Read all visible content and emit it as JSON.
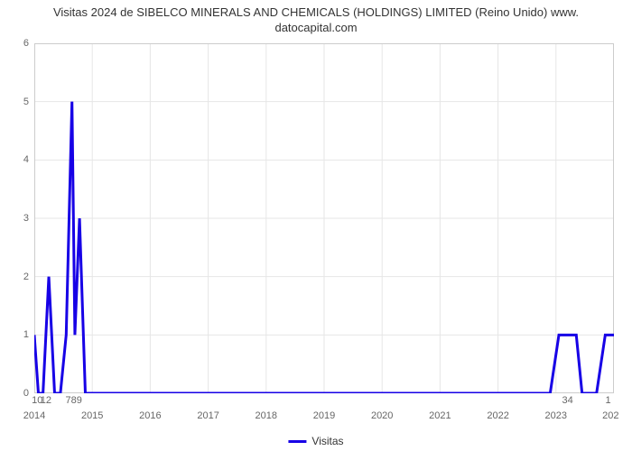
{
  "chart": {
    "type": "line",
    "title_line1": "Visitas 2024 de SIBELCO MINERALS AND CHEMICALS (HOLDINGS) LIMITED (Reino Unido) www.",
    "title_line2": "datocapital.com",
    "title_fontsize": 13,
    "title_color": "#333333",
    "background_color": "#ffffff",
    "plot_border_color": "#cccccc",
    "grid_color": "#e6e6e6",
    "x_domain": [
      2014,
      2024
    ],
    "y_axis": {
      "min": 0,
      "max": 6,
      "ticks": [
        0,
        1,
        2,
        3,
        4,
        5,
        6
      ],
      "tick_fontsize": 11,
      "tick_color": "#666666"
    },
    "x_axis_years": {
      "ticks": [
        2014,
        2015,
        2016,
        2017,
        2018,
        2019,
        2020,
        2021,
        2022,
        2023
      ],
      "end_label": "202",
      "tick_fontsize": 11,
      "tick_color": "#666666"
    },
    "x_point_labels": [
      {
        "x": 2014.05,
        "label": "10"
      },
      {
        "x": 2014.2,
        "label": "12"
      },
      {
        "x": 2014.68,
        "label": "789"
      },
      {
        "x": 2023.2,
        "label": "34"
      },
      {
        "x": 2023.9,
        "label": "1"
      }
    ],
    "series": {
      "name": "Visitas",
      "color": "#1700e6",
      "stroke_width": 3,
      "points": [
        {
          "x": 2014.0,
          "y": 1
        },
        {
          "x": 2014.07,
          "y": 0
        },
        {
          "x": 2014.15,
          "y": 0
        },
        {
          "x": 2014.25,
          "y": 2
        },
        {
          "x": 2014.35,
          "y": 0
        },
        {
          "x": 2014.45,
          "y": 0
        },
        {
          "x": 2014.55,
          "y": 1
        },
        {
          "x": 2014.65,
          "y": 5
        },
        {
          "x": 2014.7,
          "y": 1
        },
        {
          "x": 2014.78,
          "y": 3
        },
        {
          "x": 2014.88,
          "y": 0
        },
        {
          "x": 2015.0,
          "y": 0
        },
        {
          "x": 2016.0,
          "y": 0
        },
        {
          "x": 2017.0,
          "y": 0
        },
        {
          "x": 2018.0,
          "y": 0
        },
        {
          "x": 2019.0,
          "y": 0
        },
        {
          "x": 2020.0,
          "y": 0
        },
        {
          "x": 2021.0,
          "y": 0
        },
        {
          "x": 2022.0,
          "y": 0
        },
        {
          "x": 2022.9,
          "y": 0
        },
        {
          "x": 2023.05,
          "y": 1
        },
        {
          "x": 2023.35,
          "y": 1
        },
        {
          "x": 2023.45,
          "y": 0
        },
        {
          "x": 2023.7,
          "y": 0
        },
        {
          "x": 2023.85,
          "y": 1
        },
        {
          "x": 2024.0,
          "y": 1
        }
      ]
    },
    "legend": {
      "label": "Visitas",
      "fontsize": 12,
      "color": "#333333"
    }
  }
}
